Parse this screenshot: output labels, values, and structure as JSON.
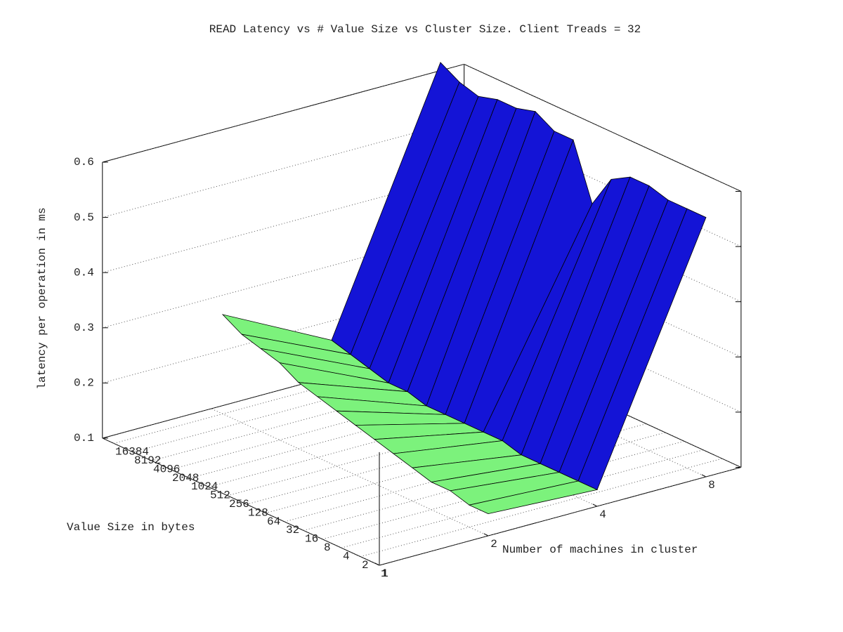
{
  "chart_data": {
    "type": "surface3d",
    "title": "READ Latency vs # Value Size vs Cluster Size.  Client Treads = 32",
    "x_label": "Value Size in bytes",
    "y_label": "Number of machines in cluster",
    "z_label": "latency per operation in ms",
    "categories": [
      "1",
      "2",
      "4",
      "8",
      "16",
      "32",
      "64",
      "128",
      "256",
      "512",
      "1024",
      "2048",
      "4096",
      "8192",
      "16384"
    ],
    "ylim": [
      1,
      10
    ],
    "yticks": [
      1,
      2,
      4,
      8
    ],
    "log_y": true,
    "zlim": [
      0.1,
      0.6
    ],
    "zticks": [
      0.1,
      0.2,
      0.3,
      0.4,
      0.5,
      0.6
    ],
    "grid": true,
    "series": [
      {
        "name": "2",
        "machines": 2,
        "color": "#7cf27c",
        "values": [
          0.14,
          0.14,
          0.15,
          0.15,
          0.16,
          0.17,
          0.18,
          0.19,
          0.2,
          0.21,
          0.22,
          0.24,
          0.25,
          0.26,
          0.28
        ]
      },
      {
        "name": "4",
        "machines": 4,
        "color": "#1414d6",
        "values": [
          0.13,
          0.13,
          0.13,
          0.13,
          0.13,
          0.14,
          0.14,
          0.14,
          0.14,
          0.14,
          0.15,
          0.15,
          0.16,
          0.17,
          0.18
        ]
      },
      {
        "name": "8",
        "machines": 8,
        "color": "#0000b4",
        "values": [
          0.57,
          0.57,
          0.57,
          0.58,
          0.58,
          0.56,
          0.5,
          0.6,
          0.6,
          0.62,
          0.61,
          0.61,
          0.6,
          0.61,
          0.63
        ]
      }
    ]
  }
}
